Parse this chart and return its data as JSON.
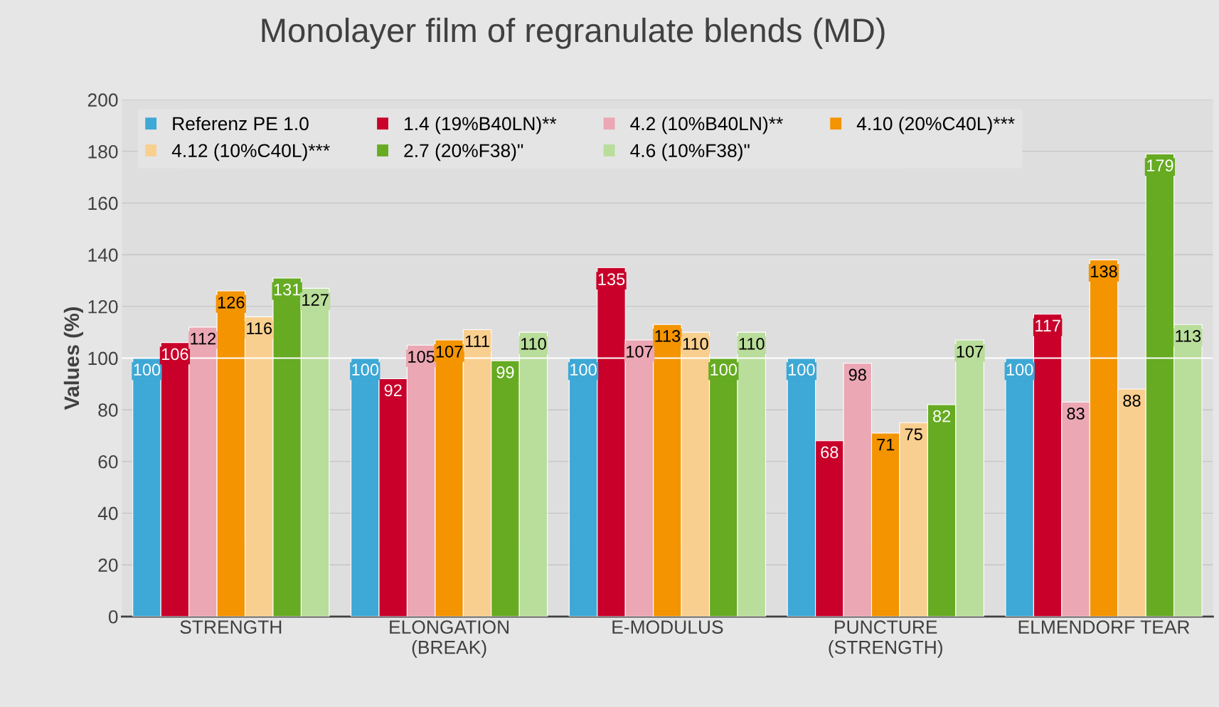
{
  "chart_data": {
    "type": "bar",
    "title": "Monolayer film of regranulate blends (MD)",
    "ylabel": "Values (%)",
    "categories": [
      "STRENGTH",
      "ELONGATION\n(BREAK)",
      "E-MODULUS",
      "PUNCTURE\n(STRENGTH)",
      "ELMENDORF TEAR"
    ],
    "series": [
      {
        "name": "Referenz PE 1.0",
        "color": "#3ea8d6",
        "values": [
          100,
          100,
          100,
          100,
          100
        ]
      },
      {
        "name": "1.4 (19%B40LN)**",
        "color": "#c8002a",
        "values": [
          106,
          92,
          135,
          68,
          117
        ]
      },
      {
        "name": "4.2 (10%B40LN)**",
        "color": "#eba7b3",
        "values": [
          112,
          105,
          107,
          98,
          83
        ]
      },
      {
        "name": "4.10 (20%C40L)***",
        "color": "#f39400",
        "values": [
          126,
          107,
          113,
          71,
          138
        ]
      },
      {
        "name": "4.12 (10%C40L)***",
        "color": "#f9cf8f",
        "values": [
          116,
          111,
          110,
          75,
          88
        ]
      },
      {
        "name": "2.7 (20%F38)\"",
        "color": "#66ab22",
        "values": [
          131,
          99,
          100,
          82,
          179
        ]
      },
      {
        "name": "4.6 (10%F38)\"",
        "color": "#b9dd9a",
        "values": [
          127,
          110,
          110,
          107,
          113
        ]
      }
    ],
    "ylim": [
      0,
      200
    ],
    "yticks": [
      0,
      20,
      40,
      60,
      80,
      100,
      120,
      140,
      160,
      180,
      200
    ],
    "grid": "y",
    "legend": "top",
    "data_labels": true,
    "ref_lines": [
      {
        "axis": "y",
        "value": 100,
        "label": null,
        "color": "#ffffff"
      }
    ]
  }
}
